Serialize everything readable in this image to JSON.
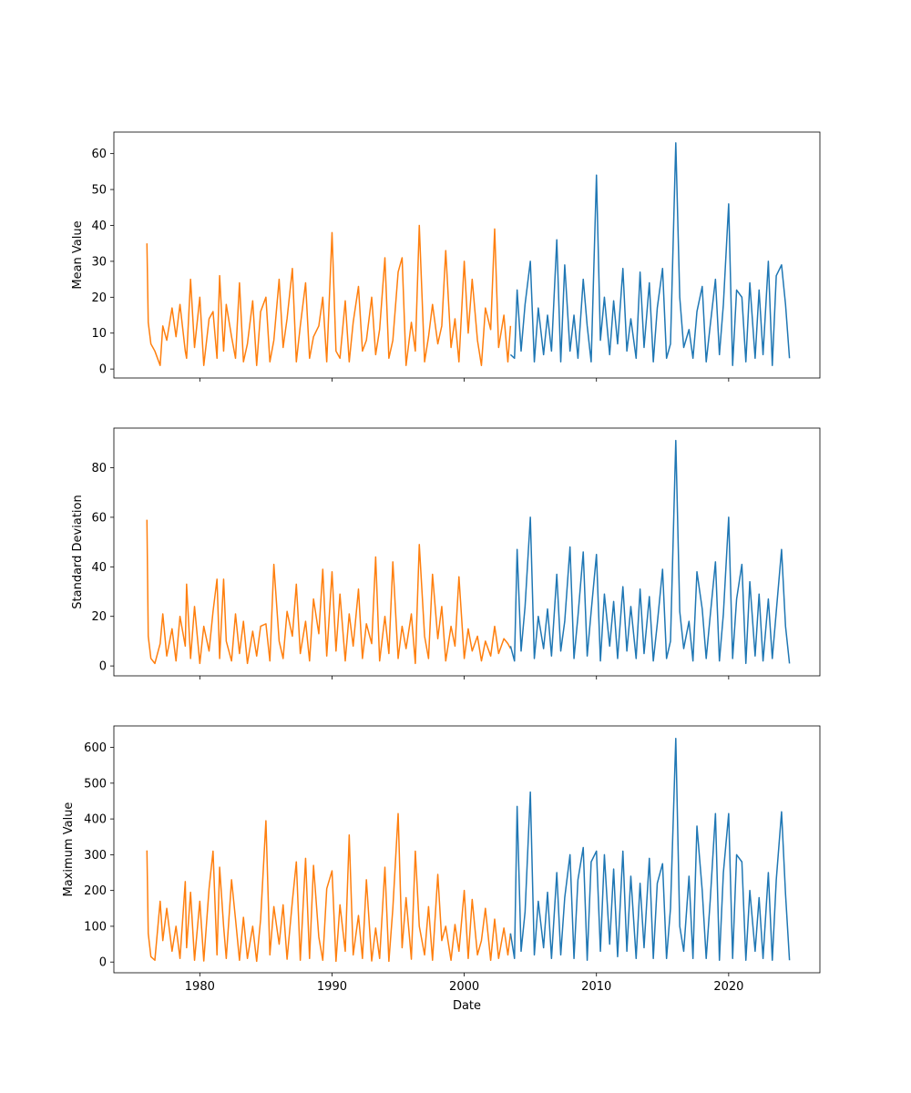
{
  "chart_data": [
    {
      "type": "line",
      "ylabel": "Mean Value",
      "xlabel": "",
      "xlim": [
        1973.5,
        2026.9
      ],
      "ylim": [
        -2.5,
        66
      ],
      "yticks": [
        0,
        10,
        20,
        30,
        40,
        50,
        60
      ],
      "xticks": [
        1980,
        1990,
        2000,
        2010,
        2020
      ],
      "show_xtick_labels": false,
      "series": [
        {
          "color": "#ff7f0e",
          "x": [
            1976.0,
            1976.1,
            1976.3,
            1976.6,
            1977.0,
            1977.2,
            1977.5,
            1977.9,
            1978.2,
            1978.5,
            1978.9,
            1979.0,
            1979.3,
            1979.6,
            1980.0,
            1980.3,
            1980.7,
            1981.0,
            1981.3,
            1981.5,
            1981.8,
            1982.0,
            1982.4,
            1982.7,
            1983.0,
            1983.3,
            1983.6,
            1984.0,
            1984.3,
            1984.6,
            1985.0,
            1985.3,
            1985.6,
            1986.0,
            1986.3,
            1986.6,
            1987.0,
            1987.3,
            1987.6,
            1988.0,
            1988.3,
            1988.6,
            1989.0,
            1989.3,
            1989.6,
            1990.0,
            1990.3,
            1990.6,
            1991.0,
            1991.3,
            1991.6,
            1992.0,
            1992.3,
            1992.6,
            1993.0,
            1993.3,
            1993.6,
            1994.0,
            1994.3,
            1994.6,
            1995.0,
            1995.3,
            1995.6,
            1996.0,
            1996.3,
            1996.6,
            1997.0,
            1997.3,
            1997.6,
            1998.0,
            1998.3,
            1998.6,
            1999.0,
            1999.3,
            1999.6,
            2000.0,
            2000.3,
            2000.6,
            2001.0,
            2001.3,
            2001.6,
            2002.0,
            2002.3,
            2002.6,
            2003.0,
            2003.3,
            2003.5
          ],
          "y": [
            35,
            13,
            7,
            5,
            1,
            12,
            8,
            17,
            9,
            18,
            5,
            3,
            25,
            6,
            20,
            1,
            14,
            16,
            3,
            26,
            5,
            18,
            9,
            3,
            24,
            2,
            7,
            19,
            1,
            16,
            20,
            2,
            8,
            25,
            6,
            14,
            28,
            2,
            12,
            24,
            3,
            9,
            12,
            20,
            2,
            38,
            5,
            3,
            19,
            2,
            13,
            23,
            5,
            8,
            20,
            4,
            11,
            31,
            3,
            8,
            27,
            31,
            1,
            13,
            5,
            40,
            2,
            9,
            18,
            7,
            12,
            33,
            6,
            14,
            2,
            30,
            10,
            25,
            8,
            1,
            17,
            11,
            39,
            6,
            15,
            2,
            12
          ]
        },
        {
          "color": "#1f77b4",
          "x": [
            2003.5,
            2003.8,
            2004.0,
            2004.3,
            2004.6,
            2005.0,
            2005.3,
            2005.6,
            2006.0,
            2006.3,
            2006.6,
            2007.0,
            2007.3,
            2007.6,
            2008.0,
            2008.3,
            2008.6,
            2009.0,
            2009.3,
            2009.6,
            2010.0,
            2010.3,
            2010.6,
            2011.0,
            2011.3,
            2011.6,
            2012.0,
            2012.3,
            2012.6,
            2013.0,
            2013.3,
            2013.6,
            2014.0,
            2014.3,
            2014.6,
            2015.0,
            2015.3,
            2015.6,
            2016.0,
            2016.3,
            2016.6,
            2017.0,
            2017.3,
            2017.6,
            2018.0,
            2018.3,
            2018.6,
            2019.0,
            2019.3,
            2019.6,
            2020.0,
            2020.3,
            2020.6,
            2021.0,
            2021.3,
            2021.6,
            2022.0,
            2022.3,
            2022.6,
            2023.0,
            2023.3,
            2023.6,
            2024.0,
            2024.3,
            2024.6
          ],
          "y": [
            4,
            3,
            22,
            5,
            18,
            30,
            2,
            17,
            4,
            15,
            5,
            36,
            2,
            29,
            5,
            15,
            3,
            25,
            12,
            2,
            54,
            8,
            20,
            4,
            19,
            7,
            28,
            5,
            14,
            3,
            27,
            6,
            24,
            2,
            17,
            28,
            3,
            7,
            63,
            20,
            6,
            11,
            3,
            16,
            23,
            2,
            12,
            25,
            4,
            18,
            46,
            1,
            22,
            20,
            2,
            24,
            3,
            22,
            4,
            30,
            1,
            26,
            29,
            18,
            3
          ]
        }
      ]
    },
    {
      "type": "line",
      "ylabel": "Standard Deviation",
      "xlabel": "",
      "xlim": [
        1973.5,
        2026.9
      ],
      "ylim": [
        -4,
        96
      ],
      "yticks": [
        0,
        20,
        40,
        60,
        80
      ],
      "xticks": [
        1980,
        1990,
        2000,
        2010,
        2020
      ],
      "show_xtick_labels": false,
      "series": [
        {
          "color": "#ff7f0e",
          "x": [
            1976.0,
            1976.1,
            1976.3,
            1976.6,
            1977.0,
            1977.2,
            1977.5,
            1977.9,
            1978.2,
            1978.5,
            1978.9,
            1979.0,
            1979.3,
            1979.6,
            1980.0,
            1980.3,
            1980.7,
            1981.0,
            1981.3,
            1981.5,
            1981.8,
            1982.0,
            1982.4,
            1982.7,
            1983.0,
            1983.3,
            1983.6,
            1984.0,
            1984.3,
            1984.6,
            1985.0,
            1985.3,
            1985.6,
            1986.0,
            1986.3,
            1986.6,
            1987.0,
            1987.3,
            1987.6,
            1988.0,
            1988.3,
            1988.6,
            1989.0,
            1989.3,
            1989.6,
            1990.0,
            1990.3,
            1990.6,
            1991.0,
            1991.3,
            1991.6,
            1992.0,
            1992.3,
            1992.6,
            1993.0,
            1993.3,
            1993.6,
            1994.0,
            1994.3,
            1994.6,
            1995.0,
            1995.3,
            1995.6,
            1996.0,
            1996.3,
            1996.6,
            1997.0,
            1997.3,
            1997.6,
            1998.0,
            1998.3,
            1998.6,
            1999.0,
            1999.3,
            1999.6,
            2000.0,
            2000.3,
            2000.6,
            2001.0,
            2001.3,
            2001.6,
            2002.0,
            2002.3,
            2002.6,
            2003.0,
            2003.3,
            2003.5
          ],
          "y": [
            59,
            12,
            3,
            1,
            9,
            21,
            4,
            15,
            2,
            20,
            8,
            33,
            3,
            24,
            1,
            16,
            6,
            22,
            35,
            3,
            35,
            10,
            2,
            21,
            5,
            18,
            1,
            14,
            4,
            16,
            17,
            2,
            41,
            10,
            3,
            22,
            12,
            33,
            5,
            18,
            2,
            27,
            13,
            39,
            4,
            38,
            6,
            29,
            2,
            21,
            8,
            31,
            3,
            17,
            9,
            44,
            2,
            20,
            5,
            42,
            3,
            16,
            7,
            21,
            1,
            49,
            12,
            3,
            37,
            11,
            24,
            2,
            16,
            8,
            36,
            3,
            15,
            6,
            12,
            2,
            10,
            4,
            16,
            5,
            11,
            9,
            7
          ]
        },
        {
          "color": "#1f77b4",
          "x": [
            2003.5,
            2003.8,
            2004.0,
            2004.3,
            2004.6,
            2005.0,
            2005.3,
            2005.6,
            2006.0,
            2006.3,
            2006.6,
            2007.0,
            2007.3,
            2007.6,
            2008.0,
            2008.3,
            2008.6,
            2009.0,
            2009.3,
            2009.6,
            2010.0,
            2010.3,
            2010.6,
            2011.0,
            2011.3,
            2011.6,
            2012.0,
            2012.3,
            2012.6,
            2013.0,
            2013.3,
            2013.6,
            2014.0,
            2014.3,
            2014.6,
            2015.0,
            2015.3,
            2015.6,
            2016.0,
            2016.3,
            2016.6,
            2017.0,
            2017.3,
            2017.6,
            2018.0,
            2018.3,
            2018.6,
            2019.0,
            2019.3,
            2019.6,
            2020.0,
            2020.3,
            2020.6,
            2021.0,
            2021.3,
            2021.6,
            2022.0,
            2022.3,
            2022.6,
            2023.0,
            2023.3,
            2023.6,
            2024.0,
            2024.3,
            2024.6
          ],
          "y": [
            8,
            2,
            47,
            6,
            24,
            60,
            3,
            20,
            7,
            23,
            4,
            37,
            6,
            18,
            48,
            3,
            20,
            46,
            4,
            22,
            45,
            2,
            29,
            8,
            26,
            3,
            32,
            6,
            24,
            3,
            31,
            5,
            28,
            2,
            17,
            39,
            3,
            10,
            91,
            22,
            7,
            18,
            2,
            38,
            23,
            3,
            20,
            42,
            2,
            21,
            60,
            3,
            27,
            41,
            1,
            34,
            4,
            29,
            2,
            27,
            3,
            22,
            47,
            16,
            1
          ]
        }
      ]
    },
    {
      "type": "line",
      "ylabel": "Maximum Value",
      "xlabel": "Date",
      "xlim": [
        1973.5,
        2026.9
      ],
      "ylim": [
        -30,
        660
      ],
      "yticks": [
        0,
        100,
        200,
        300,
        400,
        500,
        600
      ],
      "xticks": [
        1980,
        1990,
        2000,
        2010,
        2020
      ],
      "show_xtick_labels": true,
      "series": [
        {
          "color": "#ff7f0e",
          "x": [
            1976.0,
            1976.1,
            1976.3,
            1976.6,
            1977.0,
            1977.2,
            1977.5,
            1977.9,
            1978.2,
            1978.5,
            1978.9,
            1979.0,
            1979.3,
            1979.6,
            1980.0,
            1980.3,
            1980.7,
            1981.0,
            1981.3,
            1981.5,
            1981.8,
            1982.0,
            1982.4,
            1982.7,
            1983.0,
            1983.3,
            1983.6,
            1984.0,
            1984.3,
            1984.6,
            1985.0,
            1985.3,
            1985.6,
            1986.0,
            1986.3,
            1986.6,
            1987.0,
            1987.3,
            1987.6,
            1988.0,
            1988.3,
            1988.6,
            1989.0,
            1989.3,
            1989.6,
            1990.0,
            1990.3,
            1990.6,
            1991.0,
            1991.3,
            1991.6,
            1992.0,
            1992.3,
            1992.6,
            1993.0,
            1993.3,
            1993.6,
            1994.0,
            1994.3,
            1994.6,
            1995.0,
            1995.3,
            1995.6,
            1996.0,
            1996.3,
            1996.6,
            1997.0,
            1997.3,
            1997.6,
            1998.0,
            1998.3,
            1998.6,
            1999.0,
            1999.3,
            1999.6,
            2000.0,
            2000.3,
            2000.6,
            2001.0,
            2001.3,
            2001.6,
            2002.0,
            2002.3,
            2002.6,
            2003.0,
            2003.3,
            2003.5
          ],
          "y": [
            312,
            80,
            15,
            5,
            170,
            60,
            150,
            30,
            100,
            10,
            225,
            40,
            195,
            5,
            170,
            3,
            205,
            310,
            20,
            265,
            100,
            10,
            230,
            120,
            5,
            125,
            10,
            100,
            2,
            120,
            395,
            20,
            155,
            50,
            160,
            8,
            170,
            280,
            5,
            290,
            10,
            270,
            70,
            5,
            205,
            255,
            2,
            160,
            30,
            355,
            20,
            130,
            10,
            230,
            3,
            95,
            10,
            265,
            2,
            150,
            415,
            40,
            180,
            8,
            310,
            100,
            20,
            155,
            5,
            245,
            60,
            100,
            5,
            105,
            30,
            200,
            10,
            175,
            20,
            60,
            150,
            5,
            120,
            10,
            95,
            20,
            80
          ]
        },
        {
          "color": "#1f77b4",
          "x": [
            2003.5,
            2003.8,
            2004.0,
            2004.3,
            2004.6,
            2005.0,
            2005.3,
            2005.6,
            2006.0,
            2006.3,
            2006.6,
            2007.0,
            2007.3,
            2007.6,
            2008.0,
            2008.3,
            2008.6,
            2009.0,
            2009.3,
            2009.6,
            2010.0,
            2010.3,
            2010.6,
            2011.0,
            2011.3,
            2011.6,
            2012.0,
            2012.3,
            2012.6,
            2013.0,
            2013.3,
            2013.6,
            2014.0,
            2014.3,
            2014.6,
            2015.0,
            2015.3,
            2015.6,
            2016.0,
            2016.3,
            2016.6,
            2017.0,
            2017.3,
            2017.6,
            2018.0,
            2018.3,
            2018.6,
            2019.0,
            2019.3,
            2019.6,
            2020.0,
            2020.3,
            2020.6,
            2021.0,
            2021.3,
            2021.6,
            2022.0,
            2022.3,
            2022.6,
            2023.0,
            2023.3,
            2023.6,
            2024.0,
            2024.3,
            2024.6
          ],
          "y": [
            80,
            10,
            435,
            30,
            140,
            475,
            20,
            170,
            40,
            195,
            10,
            250,
            20,
            180,
            300,
            10,
            230,
            320,
            5,
            280,
            310,
            30,
            300,
            50,
            260,
            15,
            310,
            30,
            240,
            10,
            220,
            40,
            290,
            10,
            220,
            275,
            10,
            150,
            625,
            100,
            30,
            240,
            10,
            380,
            200,
            10,
            170,
            415,
            5,
            250,
            415,
            10,
            300,
            280,
            5,
            200,
            30,
            180,
            10,
            250,
            5,
            230,
            420,
            190,
            5
          ]
        }
      ]
    }
  ]
}
